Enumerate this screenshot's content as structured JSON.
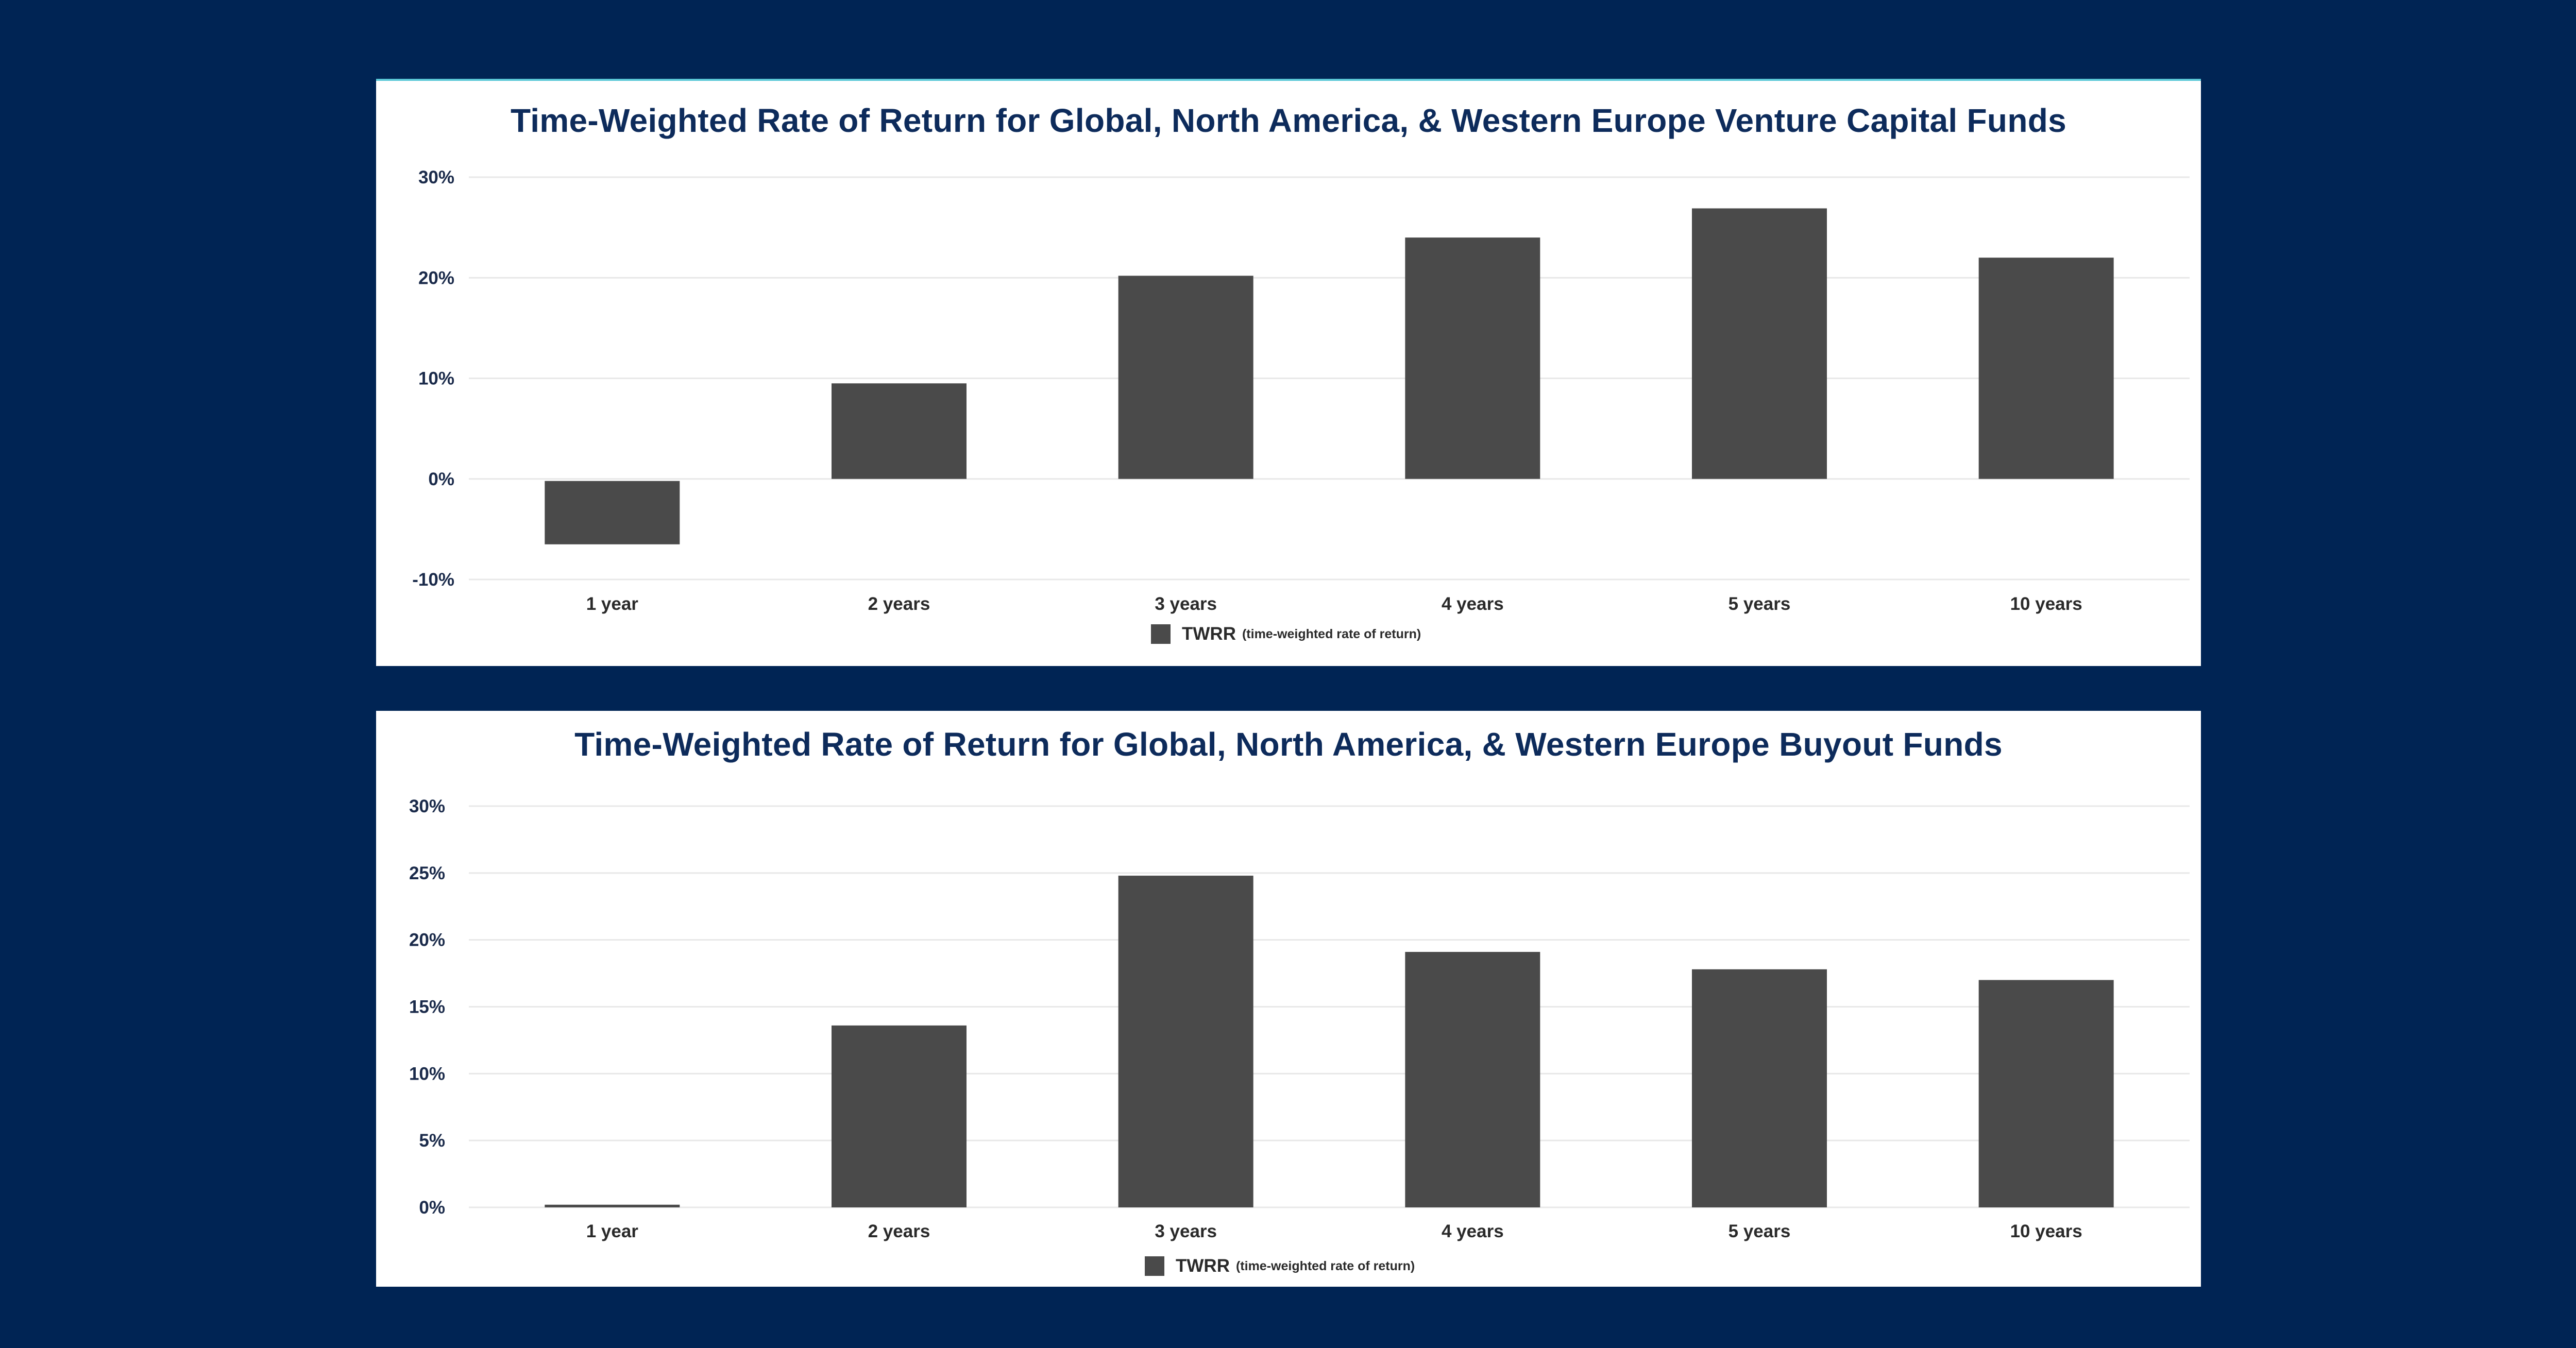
{
  "colors": {
    "background": "#002454",
    "panel": "#ffffff",
    "bar": "#4a4a4a",
    "title": "#0d2b5b",
    "tick_label": "#1a2a4a",
    "category_label": "#2a2a2a",
    "gridline": "#e8e8e8",
    "accent_top": "#5bc8d8"
  },
  "chart_data": [
    {
      "type": "bar",
      "title": "Time-Weighted Rate of Return for Global, North America, & Western Europe Venture Capital Funds",
      "categories": [
        "1 year",
        "2 years",
        "3 years",
        "4 years",
        "5 years",
        "10 years"
      ],
      "series": [
        {
          "name": "TWRR",
          "note": "(time-weighted rate of return)",
          "values": [
            -6.3,
            9.5,
            20.2,
            24.0,
            26.9,
            22.0
          ]
        }
      ],
      "ylim": [
        -10,
        30
      ],
      "yticks": [
        -10,
        0,
        10,
        20,
        30
      ],
      "ytick_labels": [
        "-10%",
        "0%",
        "10%",
        "20%",
        "30%"
      ],
      "grid": true,
      "legend": "bottom-center"
    },
    {
      "type": "bar",
      "title": "Time-Weighted Rate of Return for Global, North America, & Western Europe Buyout Funds",
      "categories": [
        "1 year",
        "2 years",
        "3 years",
        "4 years",
        "5 years",
        "10 years"
      ],
      "series": [
        {
          "name": "TWRR",
          "note": "(time-weighted rate of return)",
          "values": [
            0.2,
            13.6,
            24.8,
            19.1,
            17.8,
            17.0
          ]
        }
      ],
      "ylim": [
        0,
        30
      ],
      "yticks": [
        0,
        5,
        10,
        15,
        20,
        25,
        30
      ],
      "ytick_labels": [
        "0%",
        "5%",
        "10%",
        "15%",
        "20%",
        "25%",
        "30%"
      ],
      "grid": true,
      "legend": "bottom-center"
    }
  ]
}
